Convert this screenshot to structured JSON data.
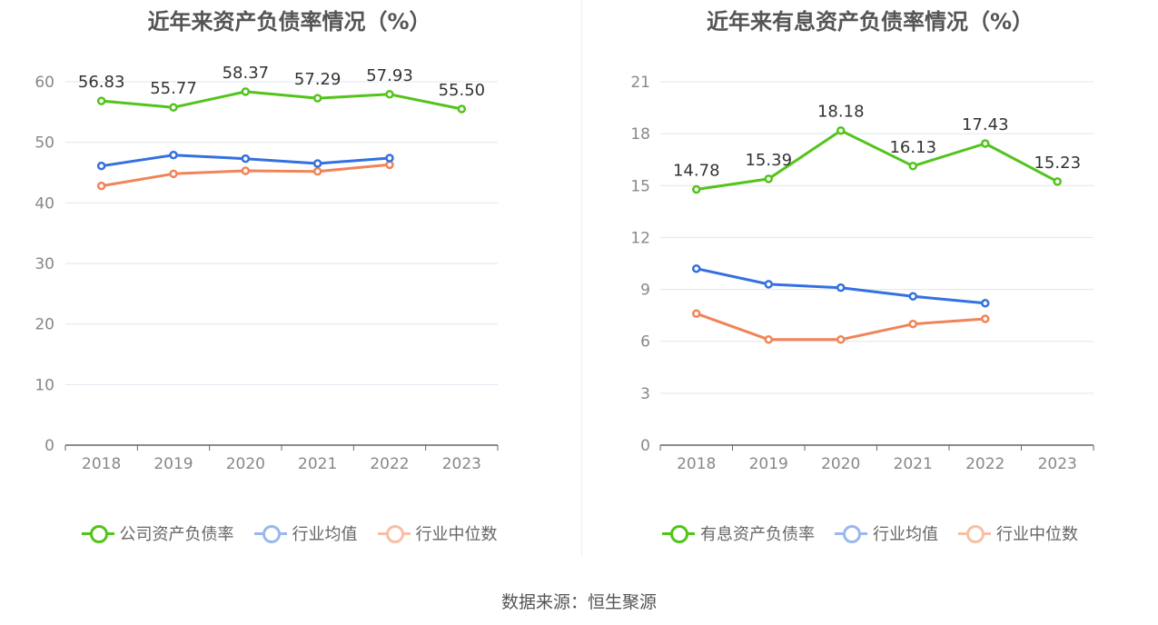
{
  "chart_data": [
    {
      "type": "line",
      "title": "近年来资产负债率情况（%）",
      "categories": [
        "2018",
        "2019",
        "2020",
        "2021",
        "2022",
        "2023"
      ],
      "ylim": [
        0,
        60
      ],
      "yticks": [
        0,
        10,
        20,
        30,
        40,
        50,
        60
      ],
      "grid": true,
      "legend_position": "bottom",
      "series": [
        {
          "name": "公司资产负债率",
          "color": "#52c41a",
          "labels": true,
          "values": [
            56.83,
            55.77,
            58.37,
            57.29,
            57.93,
            55.5
          ]
        },
        {
          "name": "行业均值",
          "color": "#3470e0",
          "labels": false,
          "values": [
            46.1,
            47.9,
            47.3,
            46.5,
            47.4,
            null
          ]
        },
        {
          "name": "行业中位数",
          "color": "#f08458",
          "labels": false,
          "values": [
            42.8,
            44.8,
            45.3,
            45.2,
            46.3,
            null
          ]
        }
      ]
    },
    {
      "type": "line",
      "title": "近年来有息资产负债率情况（%）",
      "categories": [
        "2018",
        "2019",
        "2020",
        "2021",
        "2022",
        "2023"
      ],
      "ylim": [
        0,
        21
      ],
      "yticks": [
        0,
        3,
        6,
        9,
        12,
        15,
        18,
        21
      ],
      "grid": true,
      "legend_position": "bottom",
      "series": [
        {
          "name": "有息资产负债率",
          "color": "#52c41a",
          "labels": true,
          "values": [
            14.78,
            15.39,
            18.18,
            16.13,
            17.43,
            15.23
          ]
        },
        {
          "name": "行业均值",
          "color": "#3470e0",
          "labels": false,
          "values": [
            10.2,
            9.3,
            9.1,
            8.6,
            8.2,
            null
          ]
        },
        {
          "name": "行业中位数",
          "color": "#f08458",
          "labels": false,
          "values": [
            7.6,
            6.1,
            6.1,
            7.0,
            7.3,
            null
          ]
        }
      ]
    }
  ],
  "source": "数据来源：恒生聚源"
}
